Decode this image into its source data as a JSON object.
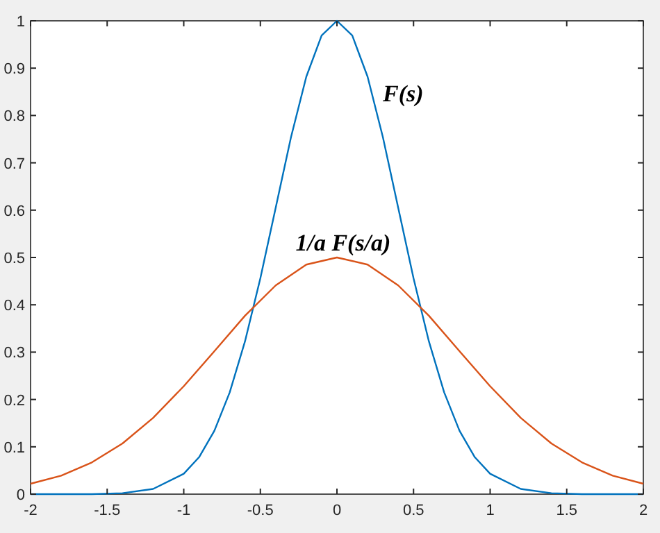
{
  "chart_data": {
    "type": "line",
    "grid": false,
    "marker": "none",
    "line_style": "solid",
    "xlim": [
      -2,
      2
    ],
    "xticks": [
      -2,
      -1.5,
      -1,
      -0.5,
      0,
      0.5,
      1,
      1.5,
      2
    ],
    "ylim": [
      0,
      1
    ],
    "yticks": [
      0,
      0.1,
      0.2,
      0.3,
      0.4,
      0.5,
      0.6,
      0.7,
      0.8,
      0.9,
      1
    ],
    "series": [
      {
        "color": "#0072bd",
        "x": [
          -2,
          -1.6,
          -1.4,
          -1.2,
          -1,
          -0.9,
          -0.8,
          -0.7,
          -0.6,
          -0.5,
          -0.4,
          -0.3,
          -0.2,
          -0.1,
          0,
          0.1,
          0.2,
          0.3,
          0.4,
          0.5,
          0.6,
          0.7,
          0.8,
          0.9,
          1,
          1.2,
          1.4,
          1.6,
          2
        ],
        "values": [
          0,
          0,
          0.002,
          0.011,
          0.043,
          0.078,
          0.134,
          0.215,
          0.323,
          0.456,
          0.605,
          0.754,
          0.882,
          0.969,
          1,
          0.969,
          0.882,
          0.754,
          0.605,
          0.456,
          0.323,
          0.215,
          0.134,
          0.078,
          0.043,
          0.011,
          0.002,
          0,
          0
        ]
      },
      {
        "color": "#d95319",
        "x": [
          -2,
          -1.8,
          -1.6,
          -1.4,
          -1.2,
          -1,
          -0.8,
          -0.6,
          -0.4,
          -0.2,
          0,
          0.2,
          0.4,
          0.6,
          0.8,
          1,
          1.2,
          1.4,
          1.6,
          1.8,
          2
        ],
        "values": [
          0.022,
          0.039,
          0.067,
          0.107,
          0.161,
          0.228,
          0.302,
          0.377,
          0.441,
          0.485,
          0.5,
          0.485,
          0.441,
          0.377,
          0.302,
          0.228,
          0.161,
          0.107,
          0.067,
          0.039,
          0.022
        ]
      }
    ],
    "annotations": [
      "F(s)",
      "1/a F(s/a)"
    ]
  }
}
